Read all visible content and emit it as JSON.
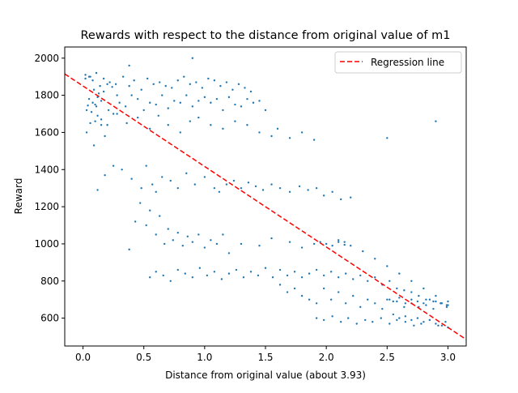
{
  "chart_data": {
    "type": "scatter",
    "title": "Rewards with respect to the distance from original value of m1",
    "xlabel": "Distance from original value (about 3.93)",
    "ylabel": "Reward",
    "xlim": [
      -0.15,
      3.15
    ],
    "ylim": [
      450,
      2060
    ],
    "x_ticks": [
      0.0,
      0.5,
      1.0,
      1.5,
      2.0,
      2.5,
      3.0
    ],
    "x_tick_labels": [
      "0.0",
      "0.5",
      "1.0",
      "1.5",
      "2.0",
      "2.5",
      "3.0"
    ],
    "y_ticks": [
      600,
      800,
      1000,
      1200,
      1400,
      1600,
      1800,
      2000
    ],
    "y_tick_labels": [
      "600",
      "800",
      "1000",
      "1200",
      "1400",
      "1600",
      "1800",
      "2000"
    ],
    "grid": false,
    "legend": {
      "position": "top-right",
      "entries": [
        "Regression line"
      ]
    },
    "colors": {
      "points": "#1f77b4",
      "regression": "#ff0000"
    },
    "regression_line": {
      "name": "Regression line",
      "style": "dashed",
      "x": [
        -0.15,
        3.15
      ],
      "y": [
        1915,
        485
      ]
    },
    "series": [
      {
        "x": [
          0.02,
          0.03,
          0.04,
          0.05,
          0.06,
          0.07,
          0.08,
          0.09,
          0.1,
          0.11,
          0.12,
          0.13,
          0.15,
          0.17,
          0.2,
          0.24,
          0.28,
          0.03,
          0.06,
          0.09,
          0.12,
          0.15,
          0.18,
          0.21,
          0.25,
          0.3,
          0.35,
          0.4,
          0.45,
          0.5,
          0.55,
          0.6,
          0.65,
          0.7,
          0.75,
          0.8,
          0.85,
          0.9,
          0.95,
          1.0,
          1.05,
          1.1,
          1.15,
          1.2,
          1.25,
          1.3,
          1.35,
          1.4,
          1.45,
          1.5,
          0.02,
          0.05,
          0.08,
          0.11,
          0.14,
          0.17,
          0.22,
          0.27,
          0.33,
          0.38,
          0.42,
          0.48,
          0.53,
          0.58,
          0.63,
          0.68,
          0.73,
          0.78,
          0.83,
          0.88,
          0.93,
          0.98,
          1.03,
          1.08,
          1.13,
          1.18,
          1.23,
          1.28,
          1.33,
          1.38,
          0.1,
          0.15,
          0.2,
          0.28,
          0.36,
          0.45,
          0.55,
          0.62,
          0.7,
          0.8,
          0.88,
          0.95,
          1.05,
          1.15,
          1.25,
          1.35,
          1.45,
          1.55,
          1.6,
          1.7,
          1.8,
          1.9,
          0.12,
          0.18,
          0.25,
          0.32,
          0.4,
          0.48,
          0.52,
          0.57,
          0.6,
          0.65,
          0.72,
          0.78,
          0.85,
          0.92,
          1.0,
          1.08,
          1.12,
          1.18,
          1.24,
          1.3,
          1.36,
          1.42,
          1.48,
          1.55,
          1.62,
          1.7,
          1.78,
          1.85,
          1.92,
          1.98,
          2.05,
          2.12,
          2.2,
          0.38,
          0.43,
          0.47,
          0.52,
          0.55,
          0.6,
          0.63,
          0.67,
          0.7,
          0.74,
          0.78,
          0.82,
          0.86,
          0.9,
          0.95,
          1.0,
          1.05,
          1.1,
          1.15,
          1.2,
          1.3,
          1.45,
          1.55,
          1.7,
          1.8,
          1.9,
          1.95,
          2.0,
          2.05,
          2.1,
          2.15,
          0.55,
          0.6,
          0.66,
          0.72,
          0.78,
          0.84,
          0.9,
          0.96,
          1.02,
          1.08,
          1.14,
          1.2,
          1.26,
          1.32,
          1.38,
          1.44,
          1.5,
          1.56,
          1.62,
          1.68,
          1.74,
          1.8,
          1.86,
          1.92,
          1.98,
          2.04,
          2.1,
          2.16,
          2.22,
          2.28,
          2.34,
          2.4,
          2.46,
          2.52,
          2.58,
          2.64,
          2.7,
          2.76,
          2.82,
          2.88,
          2.94,
          2.99,
          1.62,
          1.68,
          1.74,
          1.8,
          1.86,
          1.92,
          1.98,
          2.04,
          2.1,
          2.16,
          2.22,
          2.28,
          2.34,
          2.4,
          2.46,
          2.52,
          2.58,
          2.64,
          2.7,
          2.76,
          2.82,
          2.88,
          2.94,
          2.99,
          1.92,
          1.98,
          2.05,
          2.12,
          2.18,
          2.25,
          2.32,
          2.38,
          2.45,
          2.52,
          2.58,
          2.65,
          2.72,
          2.78,
          2.85,
          2.92,
          2.98,
          2.5,
          2.55,
          2.6,
          2.65,
          2.7,
          2.75,
          2.8,
          2.85,
          2.9,
          2.95,
          3.0,
          2.55,
          2.6,
          2.65,
          2.7,
          2.75,
          2.8,
          2.85,
          2.9,
          2.95,
          3.0,
          2.1,
          2.15,
          2.2,
          2.3,
          2.4,
          2.5,
          2.6,
          2.7,
          2.8,
          2.9,
          3.0,
          0.38,
          0.9,
          2.5,
          2.9
        ],
        "values": [
          1890,
          1720,
          1745,
          1780,
          1900,
          1710,
          1760,
          1830,
          1750,
          1740,
          1790,
          1810,
          1770,
          1820,
          1860,
          1845,
          1800,
          1600,
          1650,
          1530,
          1690,
          1640,
          1580,
          1720,
          1700,
          1760,
          1740,
          1800,
          1780,
          1720,
          1760,
          1750,
          1800,
          1730,
          1770,
          1760,
          1800,
          1740,
          1770,
          1790,
          1760,
          1780,
          1720,
          1790,
          1750,
          1740,
          1780,
          1760,
          1770,
          1720,
          1910,
          1900,
          1880,
          1920,
          1850,
          1890,
          1870,
          1860,
          1900,
          1850,
          1880,
          1830,
          1890,
          1860,
          1870,
          1850,
          1840,
          1880,
          1900,
          1860,
          1870,
          1840,
          1890,
          1880,
          1850,
          1870,
          1830,
          1860,
          1840,
          1820,
          1660,
          1670,
          1640,
          1700,
          1650,
          1680,
          1620,
          1690,
          1640,
          1600,
          1660,
          1680,
          1640,
          1620,
          1660,
          1640,
          1600,
          1580,
          1620,
          1570,
          1600,
          1560,
          1290,
          1370,
          1420,
          1400,
          1350,
          1300,
          1420,
          1320,
          1280,
          1360,
          1340,
          1300,
          1380,
          1320,
          1360,
          1300,
          1280,
          1320,
          1340,
          1300,
          1330,
          1310,
          1290,
          1320,
          1300,
          1280,
          1310,
          1290,
          1300,
          1260,
          1280,
          1240,
          1250,
          970,
          1120,
          1220,
          1100,
          1180,
          1050,
          1150,
          1000,
          1080,
          1020,
          1060,
          990,
          1040,
          1010,
          1050,
          980,
          1020,
          1000,
          1050,
          950,
          1000,
          990,
          1030,
          1010,
          980,
          1000,
          1010,
          1000,
          990,
          1010,
          995,
          820,
          850,
          830,
          800,
          860,
          840,
          820,
          870,
          830,
          850,
          810,
          840,
          860,
          820,
          850,
          830,
          870,
          820,
          860,
          830,
          850,
          820,
          840,
          860,
          830,
          850,
          820,
          840,
          810,
          830,
          800,
          820,
          780,
          800,
          760,
          750,
          740,
          720,
          700,
          690,
          680,
          670,
          780,
          740,
          760,
          720,
          700,
          680,
          760,
          700,
          740,
          680,
          720,
          660,
          700,
          680,
          650,
          700,
          690,
          660,
          680,
          660,
          670,
          650,
          680,
          660,
          600,
          590,
          610,
          580,
          600,
          570,
          590,
          580,
          600,
          570,
          590,
          580,
          560,
          570,
          590,
          560,
          580,
          700,
          690,
          710,
          680,
          700,
          690,
          680,
          700,
          690,
          680,
          670,
          620,
          600,
          610,
          590,
          600,
          580,
          590,
          570,
          560,
          550,
          1020,
          1010,
          990,
          960,
          920,
          880,
          840,
          800,
          760,
          720,
          690,
          1960,
          2000,
          1570,
          1660
        ]
      }
    ]
  }
}
